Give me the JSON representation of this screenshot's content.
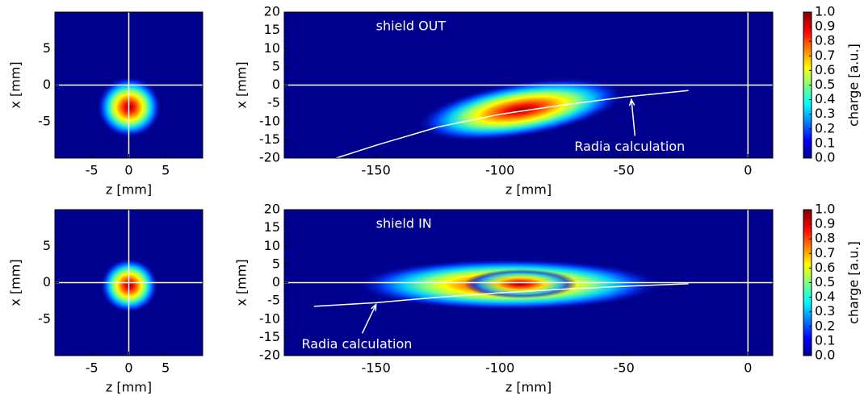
{
  "chart_data": [
    {
      "type": "heatmap",
      "xlabel": "z [mm]",
      "ylabel": "x [mm]",
      "xlim": [
        -10,
        10
      ],
      "ylim": [
        -10,
        10
      ],
      "xticks": [
        -5,
        0,
        5
      ],
      "yticks": [
        -5,
        0,
        5
      ],
      "hlines": [
        0
      ],
      "vlines": [
        0
      ]
    },
    {
      "type": "heatmap",
      "xlabel": "z [mm]",
      "ylabel": "x [mm]",
      "xlim": [
        -187,
        10
      ],
      "ylim": [
        -20,
        20
      ],
      "xticks": [
        -150,
        -100,
        -50,
        0
      ],
      "yticks": [
        -20,
        -15,
        -10,
        -5,
        0,
        5,
        10,
        15,
        20
      ],
      "hlines": [
        0
      ],
      "vlines": [
        0
      ],
      "annotations": [
        {
          "text": "shield OUT",
          "x": -150,
          "y": 16
        },
        {
          "text": "Radia calculation",
          "x": -70,
          "y": -17,
          "arrow_to": [
            -47,
            -4
          ]
        }
      ],
      "curve": {
        "color": "#ffffff",
        "x": [
          -166,
          -150,
          -125,
          -100,
          -75,
          -50,
          -24
        ],
        "y": [
          -20,
          -16.5,
          -11.5,
          -8,
          -5.5,
          -3.3,
          -1.5
        ]
      },
      "colorbar": {
        "label": "charge [a.u.]",
        "lim": [
          0,
          1
        ],
        "ticks": [
          {
            "value": 0,
            "label": "0.0"
          },
          {
            "value": 0.1,
            "label": "0.1"
          },
          {
            "value": 0.2,
            "label": "0.2"
          },
          {
            "value": 0.3,
            "label": "0.3"
          },
          {
            "value": 0.4,
            "label": "0.4"
          },
          {
            "value": 0.5,
            "label": "0.5"
          },
          {
            "value": 0.6,
            "label": "0.6"
          },
          {
            "value": 0.7,
            "label": "0.7"
          },
          {
            "value": 0.8,
            "label": "0.8"
          },
          {
            "value": 0.9,
            "label": "0.9"
          },
          {
            "value": 1,
            "label": "1.0"
          }
        ]
      }
    },
    {
      "type": "heatmap",
      "xlabel": "z [mm]",
      "ylabel": "x [mm]",
      "xlim": [
        -10,
        10
      ],
      "ylim": [
        -10,
        10
      ],
      "xticks": [
        -5,
        0,
        5
      ],
      "yticks": [
        -5,
        0,
        5
      ],
      "hlines": [
        0
      ],
      "vlines": [
        0
      ]
    },
    {
      "type": "heatmap",
      "xlabel": "z [mm]",
      "ylabel": "x [mm]",
      "xlim": [
        -187,
        10
      ],
      "ylim": [
        -20,
        20
      ],
      "xticks": [
        -150,
        -100,
        -50,
        0
      ],
      "yticks": [
        -20,
        -15,
        -10,
        -5,
        0,
        5,
        10,
        15,
        20
      ],
      "hlines": [
        0
      ],
      "vlines": [
        0
      ],
      "annotations": [
        {
          "text": "shield IN",
          "x": -150,
          "y": 16
        },
        {
          "text": "Radia calculation",
          "x": -180,
          "y": -17,
          "arrow_to": [
            -150,
            -6
          ]
        }
      ],
      "curve": {
        "color": "#ffffff",
        "x": [
          -175,
          -150,
          -125,
          -100,
          -75,
          -50,
          -24
        ],
        "y": [
          -6.5,
          -5.5,
          -4,
          -2.8,
          -1.8,
          -1,
          -0.3
        ]
      },
      "colorbar": {
        "label": "charge [a.u.]",
        "lim": [
          0,
          1
        ],
        "ticks": [
          {
            "value": 0,
            "label": "0.0"
          },
          {
            "value": 0.1,
            "label": "0.1"
          },
          {
            "value": 0.2,
            "label": "0.2"
          },
          {
            "value": 0.3,
            "label": "0.3"
          },
          {
            "value": 0.4,
            "label": "0.4"
          },
          {
            "value": 0.5,
            "label": "0.5"
          },
          {
            "value": 0.6,
            "label": "0.6"
          },
          {
            "value": 0.7,
            "label": "0.7"
          },
          {
            "value": 0.8,
            "label": "0.8"
          },
          {
            "value": 0.9,
            "label": "0.9"
          },
          {
            "value": 1,
            "label": "1.0"
          }
        ]
      }
    }
  ]
}
